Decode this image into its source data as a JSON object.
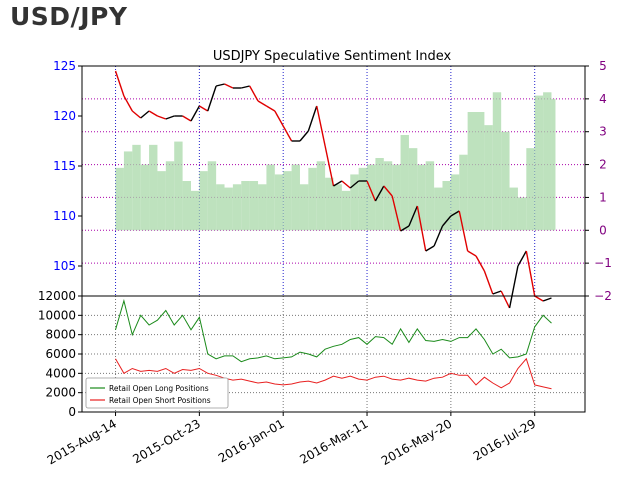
{
  "page": {
    "heading": "USD/JPY"
  },
  "colors": {
    "price_up": "#000000",
    "price_down": "#e00000",
    "sentiment_fill": "#a8d8a8",
    "long_line": "#1a8a1a",
    "short_line": "#e82020",
    "left_axis": "#0000ff",
    "right_axis": "#800080",
    "grid_blue": "#2222cc",
    "grid_purple": "#aa00aa"
  },
  "chart_data": [
    {
      "type": "line",
      "title": "USDJPY Speculative Sentiment Index",
      "x_axis_dates": [
        "2015-Aug-14",
        "2015-Oct-23",
        "2016-Jan-01",
        "2016-Mar-11",
        "2016-May-20",
        "2016-Jul-29"
      ],
      "left_axis": {
        "label": "",
        "ylim": [
          102,
          125
        ],
        "ticks": [
          105,
          110,
          115,
          120,
          125
        ]
      },
      "right_axis": {
        "label": "",
        "ylim": [
          -2,
          5
        ],
        "ticks": [
          -2,
          -1,
          0,
          1,
          2,
          3,
          4,
          5
        ]
      },
      "price_series": {
        "x": [
          "2015-Aug-14",
          "2015-Aug-21",
          "2015-Aug-28",
          "2015-Sep-04",
          "2015-Sep-11",
          "2015-Sep-18",
          "2015-Sep-25",
          "2015-Oct-02",
          "2015-Oct-09",
          "2015-Oct-16",
          "2015-Oct-23",
          "2015-Oct-30",
          "2015-Nov-06",
          "2015-Nov-13",
          "2015-Nov-20",
          "2015-Nov-27",
          "2015-Dec-04",
          "2015-Dec-11",
          "2015-Dec-18",
          "2015-Dec-25",
          "2016-Jan-01",
          "2016-Jan-08",
          "2016-Jan-15",
          "2016-Jan-22",
          "2016-Jan-29",
          "2016-Feb-05",
          "2016-Feb-12",
          "2016-Feb-19",
          "2016-Feb-26",
          "2016-Mar-04",
          "2016-Mar-11",
          "2016-Mar-18",
          "2016-Mar-25",
          "2016-Apr-01",
          "2016-Apr-08",
          "2016-Apr-15",
          "2016-Apr-22",
          "2016-Apr-29",
          "2016-May-06",
          "2016-May-13",
          "2016-May-20",
          "2016-May-27",
          "2016-Jun-03",
          "2016-Jun-10",
          "2016-Jun-17",
          "2016-Jun-24",
          "2016-Jul-01",
          "2016-Jul-08",
          "2016-Jul-15",
          "2016-Jul-22",
          "2016-Jul-29",
          "2016-Aug-05",
          "2016-Aug-12"
        ],
        "values": [
          124.5,
          122.0,
          120.5,
          119.8,
          120.5,
          120.0,
          119.7,
          120.0,
          120.0,
          119.5,
          121.0,
          120.5,
          123.0,
          123.2,
          122.8,
          122.8,
          123.0,
          121.5,
          121.0,
          120.5,
          119.0,
          117.5,
          117.5,
          118.5,
          121.0,
          117.0,
          113.0,
          113.5,
          112.8,
          113.5,
          113.5,
          111.5,
          113.0,
          112.0,
          108.5,
          109.0,
          111.0,
          106.5,
          107.0,
          109.0,
          110.0,
          110.5,
          106.5,
          106.0,
          104.5,
          102.2,
          102.5,
          100.8,
          105.0,
          106.5,
          102.0,
          101.5,
          101.8
        ]
      },
      "sentiment_series": {
        "name": "",
        "x": [
          "2015-Aug-14",
          "2015-Aug-21",
          "2015-Aug-28",
          "2015-Sep-04",
          "2015-Sep-11",
          "2015-Sep-18",
          "2015-Sep-25",
          "2015-Oct-02",
          "2015-Oct-09",
          "2015-Oct-16",
          "2015-Oct-23",
          "2015-Oct-30",
          "2015-Nov-06",
          "2015-Nov-13",
          "2015-Nov-20",
          "2015-Nov-27",
          "2015-Dec-04",
          "2015-Dec-11",
          "2015-Dec-18",
          "2015-Dec-25",
          "2016-Jan-01",
          "2016-Jan-08",
          "2016-Jan-15",
          "2016-Jan-22",
          "2016-Jan-29",
          "2016-Feb-05",
          "2016-Feb-12",
          "2016-Feb-19",
          "2016-Feb-26",
          "2016-Mar-04",
          "2016-Mar-11",
          "2016-Mar-18",
          "2016-Mar-25",
          "2016-Apr-01",
          "2016-Apr-08",
          "2016-Apr-15",
          "2016-Apr-22",
          "2016-Apr-29",
          "2016-May-06",
          "2016-May-13",
          "2016-May-20",
          "2016-May-27",
          "2016-Jun-03",
          "2016-Jun-10",
          "2016-Jun-17",
          "2016-Jun-24",
          "2016-Jul-01",
          "2016-Jul-08",
          "2016-Jul-15",
          "2016-Jul-22",
          "2016-Jul-29",
          "2016-Aug-05",
          "2016-Aug-12"
        ],
        "values": [
          1.9,
          2.4,
          2.6,
          2.0,
          2.6,
          1.8,
          2.1,
          2.7,
          1.5,
          1.2,
          1.8,
          2.1,
          1.4,
          1.3,
          1.4,
          1.5,
          1.5,
          1.4,
          2.0,
          1.7,
          1.8,
          2.0,
          1.4,
          1.9,
          2.1,
          1.6,
          1.4,
          1.2,
          1.7,
          1.9,
          2.0,
          2.2,
          2.1,
          2.0,
          2.9,
          2.5,
          2.0,
          2.1,
          1.3,
          1.5,
          1.7,
          2.3,
          3.6,
          3.6,
          3.2,
          4.2,
          3.0,
          1.3,
          1.0,
          2.5,
          4.1,
          4.2,
          4.0
        ]
      }
    },
    {
      "type": "line",
      "title": "",
      "x_axis_dates": [
        "2015-Aug-14",
        "2015-Oct-23",
        "2016-Jan-01",
        "2016-Mar-11",
        "2016-May-20",
        "2016-Jul-29"
      ],
      "ylim": [
        0,
        12000
      ],
      "y_ticks": [
        0,
        2000,
        4000,
        6000,
        8000,
        10000,
        12000
      ],
      "legend": {
        "placement": "lower-left"
      },
      "series": [
        {
          "name": "Retail Open Long Positions",
          "x": [
            "2015-Aug-14",
            "2015-Aug-21",
            "2015-Aug-28",
            "2015-Sep-04",
            "2015-Sep-11",
            "2015-Sep-18",
            "2015-Sep-25",
            "2015-Oct-02",
            "2015-Oct-09",
            "2015-Oct-16",
            "2015-Oct-23",
            "2015-Oct-30",
            "2015-Nov-06",
            "2015-Nov-13",
            "2015-Nov-20",
            "2015-Nov-27",
            "2015-Dec-04",
            "2015-Dec-11",
            "2015-Dec-18",
            "2015-Dec-25",
            "2016-Jan-01",
            "2016-Jan-08",
            "2016-Jan-15",
            "2016-Jan-22",
            "2016-Jan-29",
            "2016-Feb-05",
            "2016-Feb-12",
            "2016-Feb-19",
            "2016-Feb-26",
            "2016-Mar-04",
            "2016-Mar-11",
            "2016-Mar-18",
            "2016-Mar-25",
            "2016-Apr-01",
            "2016-Apr-08",
            "2016-Apr-15",
            "2016-Apr-22",
            "2016-Apr-29",
            "2016-May-06",
            "2016-May-13",
            "2016-May-20",
            "2016-May-27",
            "2016-Jun-03",
            "2016-Jun-10",
            "2016-Jun-17",
            "2016-Jun-24",
            "2016-Jul-01",
            "2016-Jul-08",
            "2016-Jul-15",
            "2016-Jul-22",
            "2016-Jul-29",
            "2016-Aug-05",
            "2016-Aug-12"
          ],
          "values": [
            8500,
            11500,
            8000,
            10000,
            9000,
            9500,
            10500,
            9000,
            10000,
            8500,
            9800,
            6000,
            5500,
            5800,
            5800,
            5200,
            5500,
            5600,
            5800,
            5500,
            5600,
            5700,
            6200,
            6000,
            5700,
            6500,
            6800,
            7000,
            7500,
            7700,
            7000,
            7800,
            7700,
            7000,
            8600,
            7200,
            8600,
            7400,
            7300,
            7500,
            7300,
            7700,
            7700,
            8600,
            7500,
            6000,
            6500,
            5600,
            5700,
            6000,
            8800,
            10000,
            9200
          ]
        },
        {
          "name": "Retail Open Short Positions",
          "x": [
            "2015-Aug-14",
            "2015-Aug-21",
            "2015-Aug-28",
            "2015-Sep-04",
            "2015-Sep-11",
            "2015-Sep-18",
            "2015-Sep-25",
            "2015-Oct-02",
            "2015-Oct-09",
            "2015-Oct-16",
            "2015-Oct-23",
            "2015-Oct-30",
            "2015-Nov-06",
            "2015-Nov-13",
            "2015-Nov-20",
            "2015-Nov-27",
            "2015-Dec-04",
            "2015-Dec-11",
            "2015-Dec-18",
            "2015-Dec-25",
            "2016-Jan-01",
            "2016-Jan-08",
            "2016-Jan-15",
            "2016-Jan-22",
            "2016-Jan-29",
            "2016-Feb-05",
            "2016-Feb-12",
            "2016-Feb-19",
            "2016-Feb-26",
            "2016-Mar-04",
            "2016-Mar-11",
            "2016-Mar-18",
            "2016-Mar-25",
            "2016-Apr-01",
            "2016-Apr-08",
            "2016-Apr-15",
            "2016-Apr-22",
            "2016-Apr-29",
            "2016-May-06",
            "2016-May-13",
            "2016-May-20",
            "2016-May-27",
            "2016-Jun-03",
            "2016-Jun-10",
            "2016-Jun-17",
            "2016-Jun-24",
            "2016-Jul-01",
            "2016-Jul-08",
            "2016-Jul-15",
            "2016-Jul-22",
            "2016-Jul-29",
            "2016-Aug-05",
            "2016-Aug-12"
          ],
          "values": [
            5500,
            4000,
            4500,
            4200,
            4300,
            4200,
            4500,
            4000,
            4400,
            4300,
            4500,
            4000,
            3800,
            3500,
            3300,
            3400,
            3200,
            3000,
            3100,
            2900,
            2800,
            2900,
            3100,
            3200,
            3000,
            3300,
            3700,
            3500,
            3700,
            3400,
            3300,
            3600,
            3700,
            3400,
            3300,
            3500,
            3300,
            3200,
            3500,
            3600,
            4000,
            3800,
            3800,
            2800,
            3600,
            3000,
            2500,
            3000,
            4500,
            5500,
            2800,
            2600,
            2400
          ]
        }
      ]
    }
  ]
}
